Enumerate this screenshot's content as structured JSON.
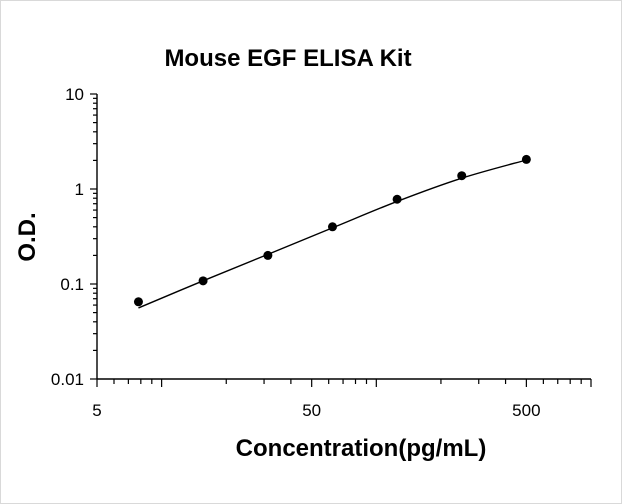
{
  "chart_data": {
    "type": "scatter",
    "title": "Mouse EGF ELISA Kit",
    "xlabel": "Concentration(pg/mL)",
    "ylabel": "O.D.",
    "xscale": "log",
    "yscale": "log",
    "xlim": [
      5,
      1000
    ],
    "ylim": [
      0.01,
      10
    ],
    "x_tick_labels": [
      {
        "value": 5,
        "label": "5"
      },
      {
        "value": 50,
        "label": "50"
      },
      {
        "value": 500,
        "label": "500"
      }
    ],
    "y_tick_labels": [
      {
        "value": 0.01,
        "label": "0.01"
      },
      {
        "value": 0.1,
        "label": "0.1"
      },
      {
        "value": 1,
        "label": "1"
      },
      {
        "value": 10,
        "label": "10"
      }
    ],
    "grid": false,
    "legend": "none",
    "series": [
      {
        "x": [
          7.8,
          15.6,
          31.25,
          62.5,
          125,
          250,
          500
        ],
        "y": [
          0.065,
          0.108,
          0.2,
          0.4,
          0.78,
          1.38,
          2.05
        ]
      }
    ],
    "fit_curve": {
      "x": [
        7.8,
        15.6,
        31.25,
        62.5,
        125,
        250,
        500
      ],
      "y": [
        0.056,
        0.108,
        0.205,
        0.39,
        0.74,
        1.3,
        2.02
      ]
    },
    "colors": {
      "marker": "#000000",
      "line": "#000000",
      "axis": "#000000"
    }
  }
}
